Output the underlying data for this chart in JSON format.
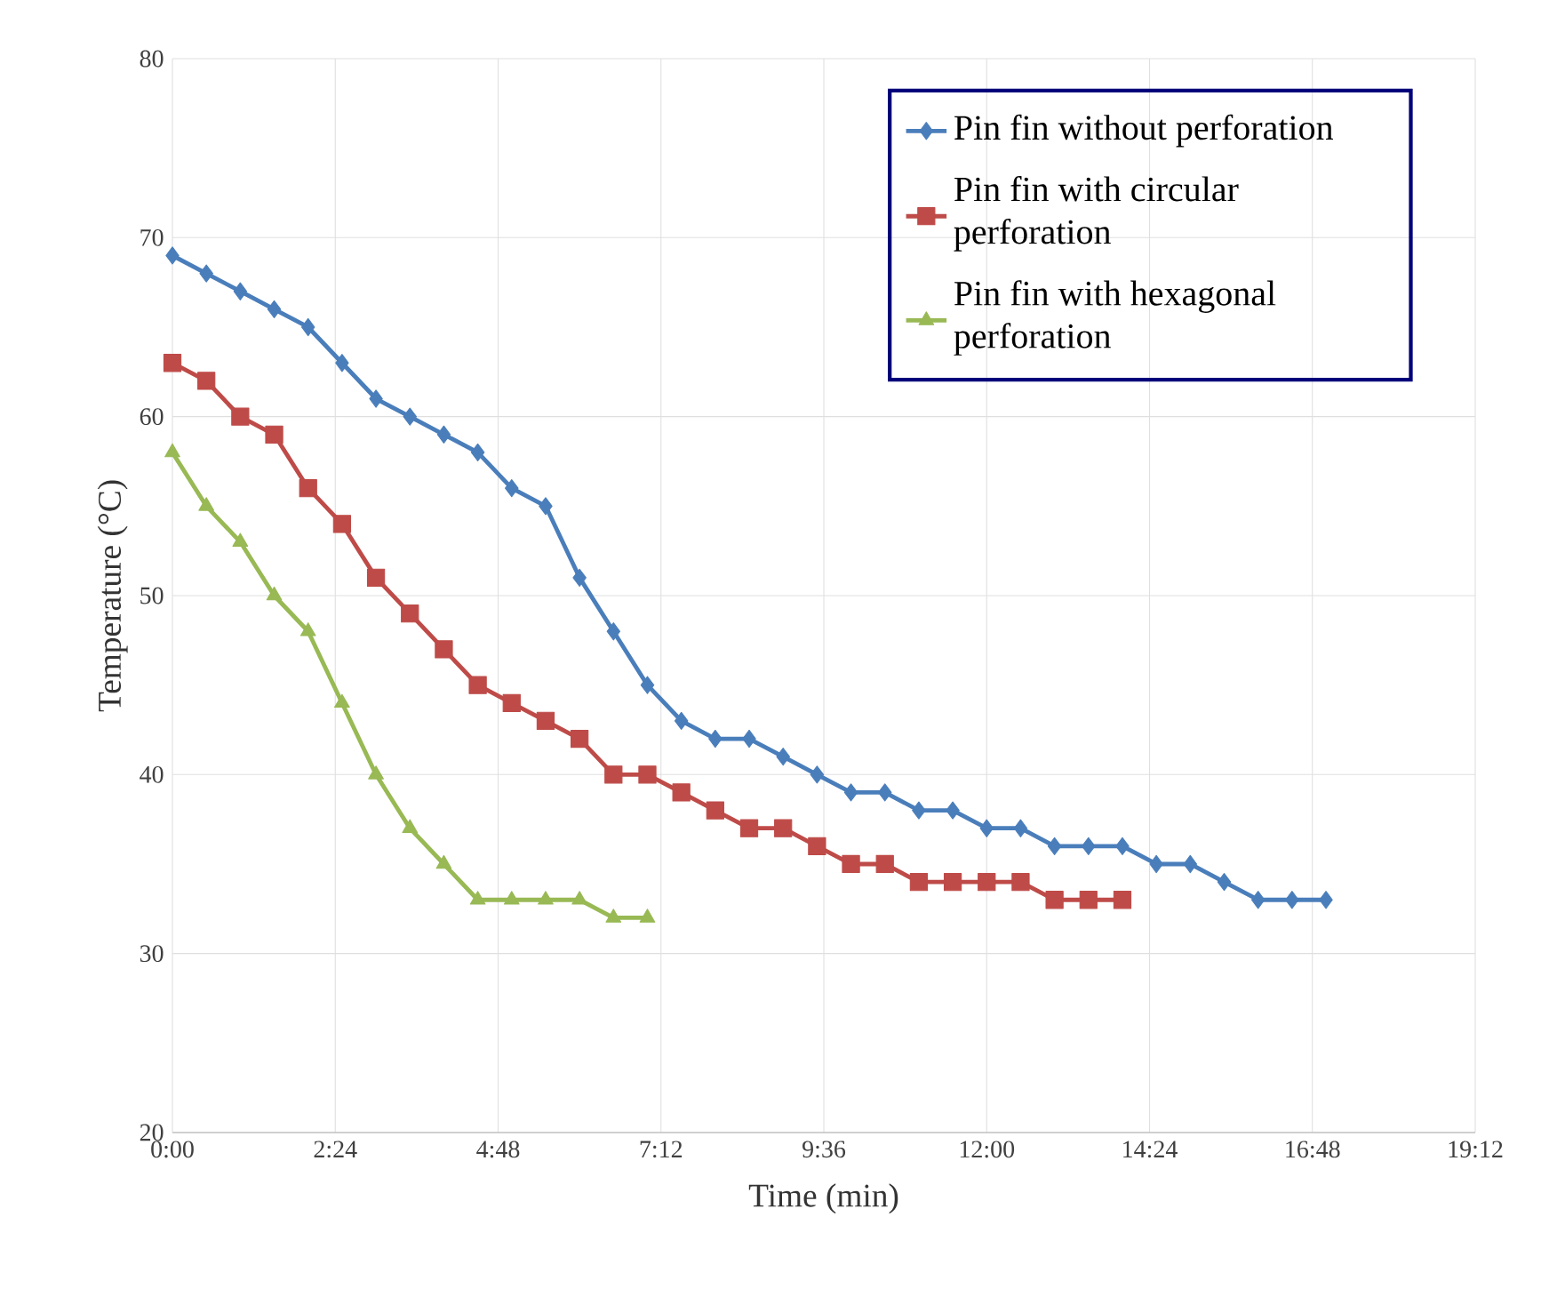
{
  "chart_data": {
    "type": "line",
    "xlabel": "Time (min)",
    "ylabel": "Temperature (°C)",
    "xlim": [
      0,
      19.2
    ],
    "ylim": [
      20,
      80
    ],
    "xticks": [
      {
        "value": 0,
        "label": "0:00"
      },
      {
        "value": 2.4,
        "label": "2:24"
      },
      {
        "value": 4.8,
        "label": "4:48"
      },
      {
        "value": 7.2,
        "label": "7:12"
      },
      {
        "value": 9.6,
        "label": "9:36"
      },
      {
        "value": 12,
        "label": "12:00"
      },
      {
        "value": 14.4,
        "label": "14:24"
      },
      {
        "value": 16.8,
        "label": "16:48"
      },
      {
        "value": 19.2,
        "label": "19:12"
      }
    ],
    "yticks": [
      20,
      30,
      40,
      50,
      60,
      70,
      80
    ],
    "grid": true,
    "legend": "top right",
    "series": [
      {
        "name": "Pin fin without perforation",
        "color": "#4a7ebb",
        "marker": "diamond",
        "x": [
          0,
          0.5,
          1,
          1.5,
          2,
          2.5,
          3,
          3.5,
          4,
          4.5,
          5,
          5.5,
          6,
          6.5,
          7,
          7.5,
          8,
          8.5,
          9,
          9.5,
          10,
          10.5,
          11,
          11.5,
          12,
          12.5,
          13,
          13.5,
          14,
          14.5,
          15,
          15.5,
          16,
          16.5,
          17
        ],
        "values": [
          69,
          68,
          67,
          66,
          65,
          63,
          61,
          60,
          59,
          58,
          56,
          55,
          51,
          48,
          45,
          43,
          42,
          42,
          41,
          40,
          39,
          39,
          38,
          38,
          37,
          37,
          36,
          36,
          36,
          35,
          35,
          34,
          33,
          33,
          33
        ]
      },
      {
        "name": "Pin fin with circular perforation",
        "color": "#be4b48",
        "marker": "square",
        "x": [
          0,
          0.5,
          1,
          1.5,
          2,
          2.5,
          3,
          3.5,
          4,
          4.5,
          5,
          5.5,
          6,
          6.5,
          7,
          7.5,
          8,
          8.5,
          9,
          9.5,
          10,
          10.5,
          11,
          11.5,
          12,
          12.5,
          13,
          13.5,
          14
        ],
        "values": [
          63,
          62,
          60,
          59,
          56,
          54,
          51,
          49,
          47,
          45,
          44,
          43,
          42,
          40,
          40,
          39,
          38,
          37,
          37,
          36,
          35,
          35,
          34,
          34,
          34,
          34,
          33,
          33,
          33
        ]
      },
      {
        "name": "Pin fin with hexagonal perforation",
        "color": "#98b954",
        "marker": "triangle",
        "x": [
          0,
          0.5,
          1,
          1.5,
          2,
          2.5,
          3,
          3.5,
          4,
          4.5,
          5,
          5.5,
          6,
          6.5,
          7
        ],
        "values": [
          58,
          55,
          53,
          50,
          48,
          44,
          40,
          37,
          35,
          33,
          33,
          33,
          33,
          32,
          32
        ]
      }
    ]
  }
}
